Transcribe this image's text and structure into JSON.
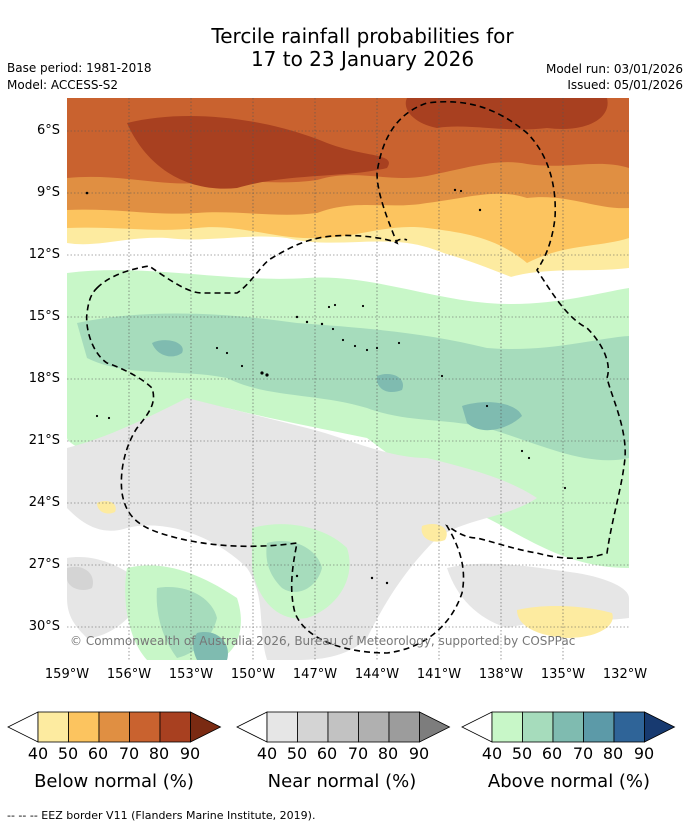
{
  "header": {
    "title_line1": "Tercile rainfall probabilities for",
    "title_line2": "17 to 23 January 2026",
    "base_period": "Base period: 1981-2018",
    "model": "Model: ACCESS-S2",
    "model_run": "Model run: 03/01/2026",
    "issued": "Issued: 05/01/2026"
  },
  "map": {
    "lat_labels": [
      "6°S",
      "9°S",
      "12°S",
      "15°S",
      "18°S",
      "21°S",
      "24°S",
      "27°S",
      "30°S"
    ],
    "lon_labels": [
      "159°W",
      "156°W",
      "153°W",
      "150°W",
      "147°W",
      "144°W",
      "141°W",
      "138°W",
      "135°W",
      "132°W"
    ],
    "credit": "© Commonwealth of Australia 2026, Bureau of Meteorology, supported by COSPPac"
  },
  "colorbars": [
    {
      "title": "Below normal (%)",
      "ticks": [
        "40",
        "50",
        "60",
        "70",
        "80",
        "90"
      ],
      "colors": [
        "#ffffff",
        "#fdeba0",
        "#fcc45f",
        "#e08f42",
        "#c9622f",
        "#a84020",
        "#7a2a12"
      ]
    },
    {
      "title": "Near normal (%)",
      "ticks": [
        "40",
        "50",
        "60",
        "70",
        "80",
        "90"
      ],
      "colors": [
        "#ffffff",
        "#e6e6e6",
        "#d4d4d4",
        "#c2c2c2",
        "#b0b0b0",
        "#9c9c9c",
        "#7d7d7d"
      ]
    },
    {
      "title": "Above normal (%)",
      "ticks": [
        "40",
        "50",
        "60",
        "70",
        "80",
        "90"
      ],
      "colors": [
        "#ffffff",
        "#c8f7c8",
        "#a6dcbc",
        "#7fbbb0",
        "#5c9aa8",
        "#2f6498",
        "#173a70"
      ]
    }
  ],
  "footer": "--  --  -- EEZ border V11 (Flanders Marine Institute, 2019)."
}
